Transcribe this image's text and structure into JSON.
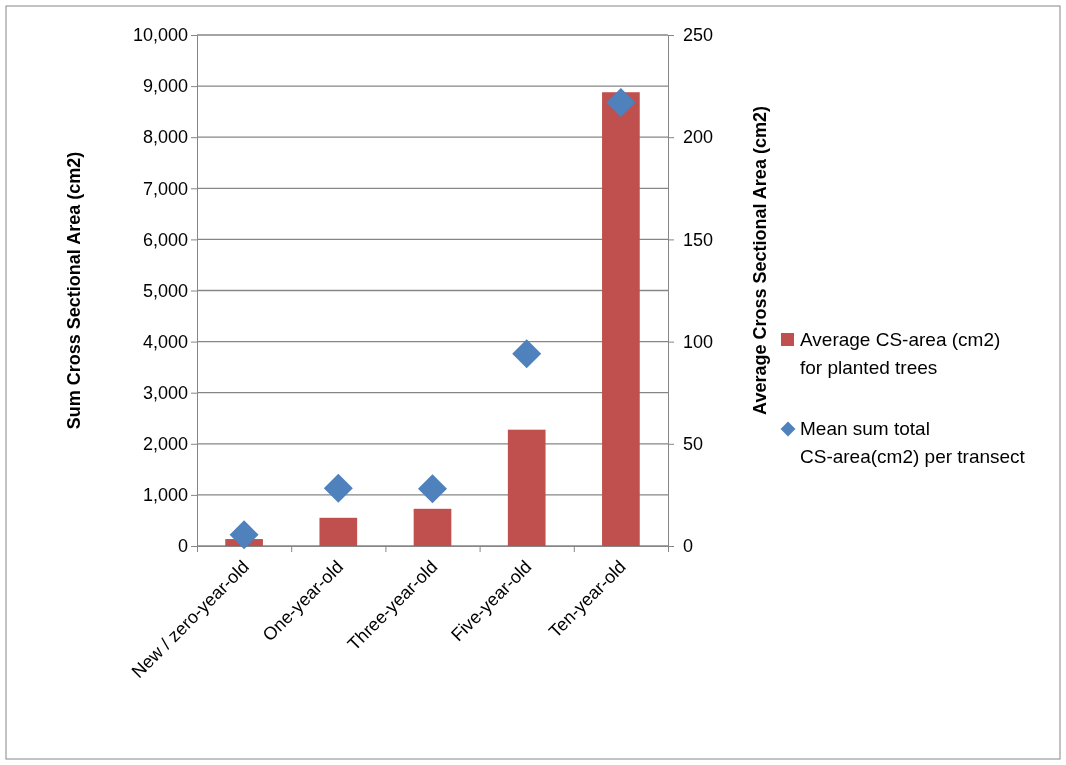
{
  "chart_data": {
    "type": "bar",
    "categories": [
      "New / zero-year-old",
      "One-year-old",
      "Three-year-old",
      "Five-year-old",
      "Ten-year-old"
    ],
    "ylabel": "Sum Cross Sectional Area (cm2)",
    "y2label": "Average Cross Sectional Area (cm2)",
    "ylim": [
      0,
      10000
    ],
    "yticks": [
      {
        "value": 0,
        "label": "0"
      },
      {
        "value": 1000,
        "label": "1,000"
      },
      {
        "value": 2000,
        "label": "2,000"
      },
      {
        "value": 3000,
        "label": "3,000"
      },
      {
        "value": 4000,
        "label": "4,000"
      },
      {
        "value": 5000,
        "label": "5,000"
      },
      {
        "value": 6000,
        "label": "6,000"
      },
      {
        "value": 7000,
        "label": "7,000"
      },
      {
        "value": 8000,
        "label": "8,000"
      },
      {
        "value": 9000,
        "label": "9,000"
      },
      {
        "value": 10000,
        "label": "10,000"
      }
    ],
    "y2lim": [
      0,
      250
    ],
    "y2ticks": [
      0,
      50,
      100,
      150,
      200,
      250
    ],
    "grid": "y",
    "legend": "right",
    "series": [
      {
        "name": "Average CS-area (cm2) for planted trees",
        "axis": "y2",
        "color": "#c0504d",
        "values": [
          3.4,
          13.8,
          18.2,
          56.9,
          222
        ]
      },
      {
        "name": "Mean sum total CS-area(cm2) per transect",
        "type": "scatter",
        "marker": "diamond",
        "color": "#4f81bd",
        "values": [
          220,
          1130,
          1120,
          3760,
          8680
        ]
      }
    ]
  }
}
